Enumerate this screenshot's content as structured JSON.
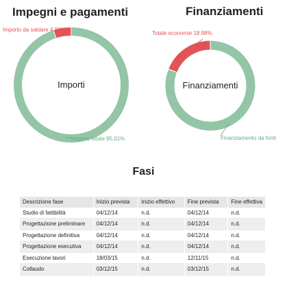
{
  "chart_data": [
    {
      "type": "pie",
      "title": "Impegni e pagamenti",
      "center_label": "Importi",
      "slices": [
        {
          "label": "Importo totale 95.01%",
          "value": 95.01,
          "color": "#93c5a6",
          "label_color": "#5fae7d"
        },
        {
          "label": "Importo da saldare 4.99%",
          "value": 4.99,
          "color": "#e05457",
          "label_color": "#e05457"
        }
      ]
    },
    {
      "type": "pie",
      "title": "Finanziamenti",
      "center_label": "Finanziamenti",
      "slices": [
        {
          "label": "Finanziamento da fonti",
          "value": 81.02,
          "color": "#93c5a6",
          "label_color": "#5fae7d"
        },
        {
          "label": "Totale economie 18.98%",
          "value": 18.98,
          "color": "#e05457",
          "label_color": "#e05457"
        }
      ]
    }
  ],
  "fasi": {
    "title": "Fasi",
    "columns": [
      "Descrizione fase",
      "Inizio prevista",
      "Inizio effettivo",
      "Fine prevista",
      "Fine effettiva"
    ],
    "rows": [
      [
        "Studio di fattibilità",
        "04/12/14",
        "n.d.",
        "04/12/14",
        "n.d."
      ],
      [
        "Progettazione preliminare",
        "04/12/14",
        "n.d.",
        "04/12/14",
        "n.d."
      ],
      [
        "Progettazione definitiva",
        "04/12/14",
        "n.d.",
        "04/12/14",
        "n.d."
      ],
      [
        "Progettazione esecutiva",
        "04/12/14",
        "n.d.",
        "04/12/14",
        "n.d."
      ],
      [
        "Esecuzione lavori",
        "18/03/15",
        "n.d.",
        "12/11/15",
        "n.d."
      ],
      [
        "Collaudo",
        "03/12/15",
        "n.d.",
        "03/12/15",
        "n.d."
      ]
    ]
  }
}
